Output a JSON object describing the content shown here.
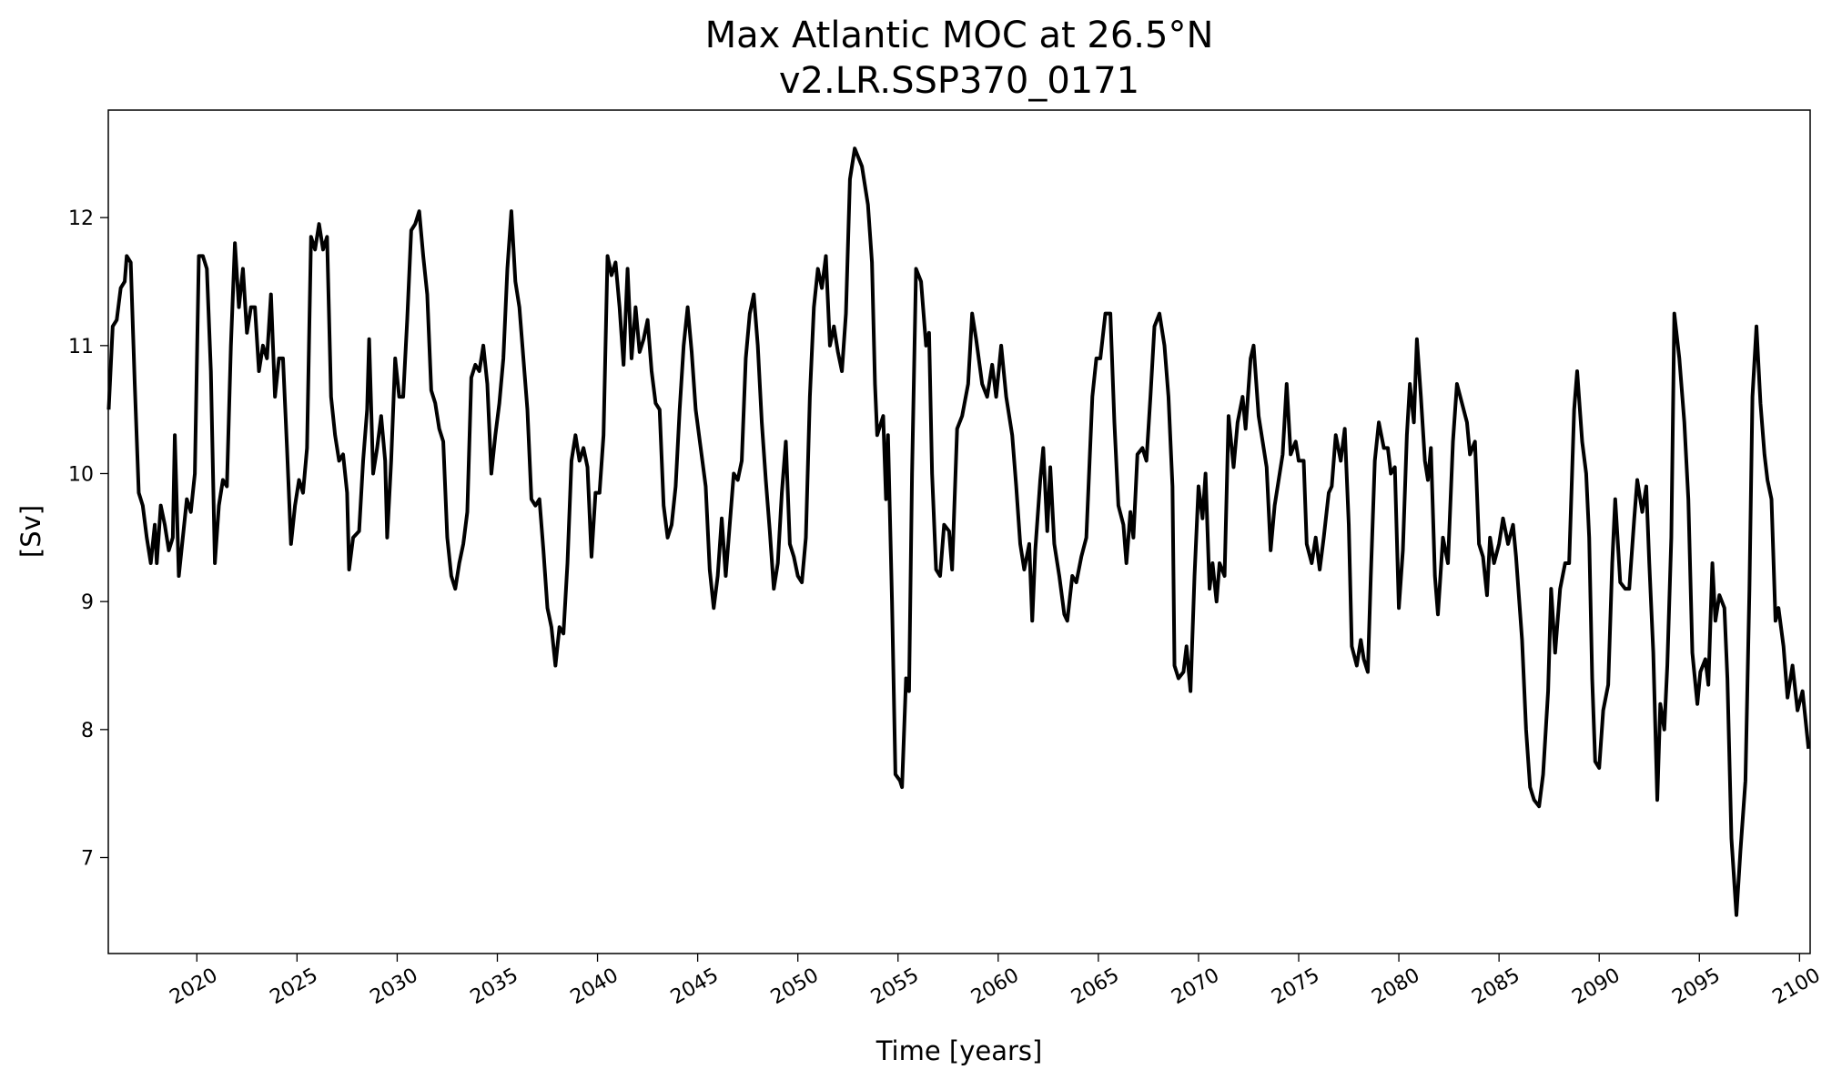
{
  "chart_data": {
    "type": "line",
    "title": "Max Atlantic MOC at 26.5°N",
    "subtitle": "v2.LR.SSP370_0171",
    "xlabel": "Time [years]",
    "ylabel": "[Sv]",
    "xlim": [
      2015.58,
      2100.53
    ],
    "ylim": [
      6.25,
      12.84
    ],
    "xticks": [
      2020,
      2025,
      2030,
      2035,
      2040,
      2045,
      2050,
      2055,
      2060,
      2065,
      2070,
      2075,
      2080,
      2085,
      2090,
      2095,
      2100
    ],
    "yticks": [
      7,
      8,
      9,
      10,
      11,
      12
    ],
    "grid": false,
    "x": [
      2015.6,
      2015.8,
      2016.0,
      2016.2,
      2016.4,
      2016.5,
      2016.7,
      2016.9,
      2017.1,
      2017.3,
      2017.5,
      2017.7,
      2017.9,
      2018.0,
      2018.2,
      2018.4,
      2018.6,
      2018.8,
      2018.9,
      2019.1,
      2019.3,
      2019.5,
      2019.7,
      2019.9,
      2020.1,
      2020.3,
      2020.5,
      2020.7,
      2020.9,
      2021.1,
      2021.3,
      2021.5,
      2021.7,
      2021.9,
      2022.1,
      2022.3,
      2022.5,
      2022.7,
      2022.9,
      2023.1,
      2023.3,
      2023.5,
      2023.7,
      2023.9,
      2024.1,
      2024.3,
      2024.5,
      2024.7,
      2024.9,
      2025.1,
      2025.3,
      2025.5,
      2025.7,
      2025.9,
      2026.1,
      2026.3,
      2026.5,
      2026.7,
      2026.9,
      2027.1,
      2027.3,
      2027.5,
      2027.6,
      2027.8,
      2028.1,
      2028.3,
      2028.5,
      2028.6,
      2028.8,
      2029.0,
      2029.2,
      2029.4,
      2029.5,
      2029.7,
      2029.9,
      2030.1,
      2030.3,
      2030.5,
      2030.7,
      2030.9,
      2031.1,
      2031.3,
      2031.5,
      2031.7,
      2031.9,
      2032.1,
      2032.3,
      2032.5,
      2032.7,
      2032.9,
      2033.1,
      2033.3,
      2033.5,
      2033.7,
      2033.9,
      2034.1,
      2034.3,
      2034.5,
      2034.7,
      2034.9,
      2035.1,
      2035.3,
      2035.5,
      2035.7,
      2035.9,
      2036.1,
      2036.3,
      2036.5,
      2036.7,
      2036.9,
      2037.1,
      2037.3,
      2037.5,
      2037.7,
      2037.9,
      2038.1,
      2038.3,
      2038.5,
      2038.7,
      2038.9,
      2039.1,
      2039.3,
      2039.5,
      2039.7,
      2039.9,
      2040.1,
      2040.3,
      2040.5,
      2040.7,
      2040.9,
      2041.1,
      2041.3,
      2041.5,
      2041.7,
      2041.9,
      2042.1,
      2042.3,
      2042.5,
      2042.7,
      2042.9,
      2043.1,
      2043.3,
      2043.5,
      2043.7,
      2043.9,
      2044.1,
      2044.3,
      2044.5,
      2044.7,
      2044.9,
      2045.4,
      2045.6,
      2045.8,
      2046.0,
      2046.2,
      2046.4,
      2046.6,
      2046.8,
      2047.0,
      2047.2,
      2047.4,
      2047.6,
      2047.8,
      2048.0,
      2048.2,
      2048.4,
      2048.6,
      2048.8,
      2049.0,
      2049.2,
      2049.4,
      2049.6,
      2049.8,
      2050.0,
      2050.2,
      2050.4,
      2050.6,
      2050.8,
      2051.0,
      2051.2,
      2051.4,
      2051.6,
      2051.8,
      2052.0,
      2052.2,
      2052.4,
      2052.6,
      2052.84,
      2053.2,
      2053.5,
      2053.7,
      2053.85,
      2053.96,
      2054.26,
      2054.4,
      2054.5,
      2054.7,
      2054.87,
      2055.1,
      2055.2,
      2055.4,
      2055.55,
      2055.7,
      2055.9,
      2056.15,
      2056.4,
      2056.55,
      2056.7,
      2056.9,
      2057.1,
      2057.3,
      2057.55,
      2057.7,
      2057.95,
      2058.2,
      2058.5,
      2058.7,
      2058.9,
      2059.2,
      2059.45,
      2059.7,
      2059.9,
      2060.15,
      2060.4,
      2060.7,
      2060.9,
      2061.1,
      2061.3,
      2061.55,
      2061.7,
      2061.85,
      2062.1,
      2062.25,
      2062.45,
      2062.6,
      2062.8,
      2063.05,
      2063.3,
      2063.45,
      2063.7,
      2063.9,
      2064.15,
      2064.4,
      2064.7,
      2064.9,
      2065.1,
      2065.35,
      2065.6,
      2065.8,
      2066.0,
      2066.25,
      2066.4,
      2066.6,
      2066.75,
      2066.95,
      2067.2,
      2067.4,
      2067.6,
      2067.8,
      2068.05,
      2068.3,
      2068.5,
      2068.7,
      2068.8,
      2069.0,
      2069.25,
      2069.4,
      2069.6,
      2069.8,
      2070.0,
      2070.2,
      2070.35,
      2070.55,
      2070.7,
      2070.9,
      2071.05,
      2071.3,
      2071.5,
      2071.75,
      2071.95,
      2072.2,
      2072.35,
      2072.6,
      2072.75,
      2073.0,
      2073.2,
      2073.4,
      2073.6,
      2073.8,
      2074.0,
      2074.2,
      2074.4,
      2074.6,
      2074.85,
      2075.0,
      2075.25,
      2075.4,
      2075.65,
      2075.85,
      2076.05,
      2076.25,
      2076.5,
      2076.65,
      2076.85,
      2077.1,
      2077.3,
      2077.5,
      2077.65,
      2077.9,
      2078.1,
      2078.25,
      2078.45,
      2078.6,
      2078.8,
      2079.0,
      2079.25,
      2079.45,
      2079.6,
      2079.8,
      2080.0,
      2080.2,
      2080.4,
      2080.55,
      2080.75,
      2080.9,
      2081.1,
      2081.3,
      2081.45,
      2081.6,
      2081.8,
      2081.95,
      2082.2,
      2082.45,
      2082.7,
      2082.9,
      2083.15,
      2083.4,
      2083.55,
      2083.8,
      2084.0,
      2084.2,
      2084.4,
      2084.55,
      2084.75,
      2085.0,
      2085.2,
      2085.45,
      2085.7,
      2085.85,
      2086.15,
      2086.35,
      2086.55,
      2086.75,
      2087.0,
      2087.2,
      2087.45,
      2087.6,
      2087.8,
      2088.05,
      2088.3,
      2088.5,
      2088.75,
      2088.9,
      2089.15,
      2089.35,
      2089.5,
      2089.65,
      2089.8,
      2090.0,
      2090.2,
      2090.45,
      2090.65,
      2090.8,
      2091.05,
      2091.3,
      2091.5,
      2091.75,
      2091.9,
      2092.15,
      2092.35,
      2092.5,
      2092.7,
      2092.9,
      2093.05,
      2093.25,
      2093.4,
      2093.6,
      2093.75,
      2094.0,
      2094.25,
      2094.45,
      2094.65,
      2094.9,
      2095.05,
      2095.3,
      2095.45,
      2095.65,
      2095.8,
      2096.0,
      2096.25,
      2096.4,
      2096.6,
      2096.85,
      2097.05,
      2097.3,
      2097.5,
      2097.65,
      2097.85,
      2098.05,
      2098.25,
      2098.4,
      2098.6,
      2098.8,
      2098.95,
      2099.2,
      2099.4,
      2099.65,
      2099.9,
      2100.15,
      2100.45
    ],
    "series": [
      {
        "color": "#000000",
        "values": [
          10.5,
          11.15,
          11.2,
          11.45,
          11.5,
          11.7,
          11.65,
          10.7,
          9.85,
          9.75,
          9.5,
          9.3,
          9.6,
          9.3,
          9.75,
          9.6,
          9.4,
          9.5,
          10.3,
          9.2,
          9.5,
          9.8,
          9.7,
          10.0,
          11.7,
          11.7,
          11.6,
          10.8,
          9.3,
          9.75,
          9.95,
          9.9,
          11.0,
          11.8,
          11.3,
          11.6,
          11.1,
          11.3,
          11.3,
          10.8,
          11.0,
          10.9,
          11.4,
          10.6,
          10.9,
          10.9,
          10.2,
          9.45,
          9.75,
          9.95,
          9.85,
          10.2,
          11.85,
          11.75,
          11.95,
          11.75,
          11.85,
          10.6,
          10.3,
          10.1,
          10.15,
          9.85,
          9.25,
          9.5,
          9.55,
          10.1,
          10.5,
          11.05,
          10.0,
          10.2,
          10.45,
          10.1,
          9.5,
          10.1,
          10.9,
          10.6,
          10.6,
          11.2,
          11.9,
          11.95,
          12.05,
          11.7,
          11.4,
          10.65,
          10.55,
          10.35,
          10.25,
          9.5,
          9.2,
          9.1,
          9.3,
          9.45,
          9.7,
          10.75,
          10.85,
          10.8,
          11.0,
          10.7,
          10.0,
          10.3,
          10.55,
          10.9,
          11.6,
          12.05,
          11.5,
          11.3,
          10.9,
          10.5,
          9.8,
          9.75,
          9.8,
          9.4,
          8.95,
          8.8,
          8.5,
          8.8,
          8.75,
          9.3,
          10.1,
          10.3,
          10.1,
          10.2,
          10.05,
          9.35,
          9.85,
          9.85,
          10.3,
          11.7,
          11.55,
          11.65,
          11.3,
          10.85,
          11.6,
          10.9,
          11.3,
          10.95,
          11.05,
          11.2,
          10.8,
          10.55,
          10.5,
          9.75,
          9.5,
          9.6,
          9.9,
          10.5,
          11.0,
          11.3,
          10.95,
          10.5,
          9.9,
          9.25,
          8.95,
          9.2,
          9.65,
          9.2,
          9.6,
          10.0,
          9.95,
          10.1,
          10.9,
          11.25,
          11.4,
          11.0,
          10.4,
          9.95,
          9.55,
          9.1,
          9.3,
          9.85,
          10.25,
          9.45,
          9.35,
          9.2,
          9.15,
          9.5,
          10.6,
          11.3,
          11.6,
          11.45,
          11.7,
          11.0,
          11.15,
          10.95,
          10.8,
          11.25,
          12.3,
          12.54,
          12.4,
          12.1,
          11.65,
          10.7,
          10.3,
          10.45,
          9.8,
          10.3,
          9.0,
          7.65,
          7.6,
          7.55,
          8.4,
          8.3,
          10.0,
          11.6,
          11.5,
          11.0,
          11.1,
          10.0,
          9.25,
          9.2,
          9.6,
          9.55,
          9.25,
          10.35,
          10.45,
          10.7,
          11.25,
          11.05,
          10.7,
          10.6,
          10.85,
          10.6,
          11.0,
          10.6,
          10.3,
          9.9,
          9.45,
          9.25,
          9.45,
          8.85,
          9.4,
          9.95,
          10.2,
          9.55,
          10.05,
          9.45,
          9.2,
          8.9,
          8.85,
          9.2,
          9.15,
          9.35,
          9.5,
          10.6,
          10.9,
          10.9,
          11.25,
          11.25,
          10.4,
          9.75,
          9.6,
          9.3,
          9.7,
          9.5,
          10.15,
          10.2,
          10.1,
          10.6,
          11.15,
          11.25,
          11.0,
          10.6,
          9.9,
          8.5,
          8.4,
          8.45,
          8.65,
          8.3,
          9.2,
          9.9,
          9.65,
          10.0,
          9.1,
          9.3,
          9.0,
          9.3,
          9.2,
          10.45,
          10.05,
          10.4,
          10.6,
          10.35,
          10.9,
          11.0,
          10.45,
          10.25,
          10.05,
          9.4,
          9.75,
          9.95,
          10.15,
          10.7,
          10.15,
          10.25,
          10.1,
          10.1,
          9.45,
          9.3,
          9.5,
          9.25,
          9.5,
          9.85,
          9.9,
          10.3,
          10.1,
          10.35,
          9.6,
          8.65,
          8.5,
          8.7,
          8.55,
          8.45,
          9.2,
          10.1,
          10.4,
          10.2,
          10.2,
          10.0,
          10.05,
          8.95,
          9.4,
          10.3,
          10.7,
          10.4,
          11.05,
          10.6,
          10.1,
          9.95,
          10.2,
          9.2,
          8.9,
          9.5,
          9.3,
          10.25,
          10.7,
          10.55,
          10.4,
          10.15,
          10.25,
          9.45,
          9.35,
          9.05,
          9.5,
          9.3,
          9.45,
          9.65,
          9.45,
          9.6,
          9.35,
          8.7,
          8.0,
          7.55,
          7.45,
          7.4,
          7.65,
          8.3,
          9.1,
          8.6,
          9.1,
          9.3,
          9.3,
          10.5,
          10.8,
          10.25,
          10.0,
          9.5,
          8.4,
          7.75,
          7.7,
          8.15,
          8.35,
          9.3,
          9.8,
          9.15,
          9.1,
          9.1,
          9.65,
          9.95,
          9.7,
          9.9,
          9.3,
          8.6,
          7.45,
          8.2,
          8.0,
          8.5,
          9.5,
          11.25,
          10.9,
          10.4,
          9.8,
          8.6,
          8.2,
          8.45,
          8.55,
          8.35,
          9.3,
          8.85,
          9.05,
          8.95,
          8.4,
          7.15,
          6.55,
          7.05,
          7.6,
          9.1,
          10.6,
          11.15,
          10.55,
          10.15,
          9.95,
          9.8,
          8.85,
          8.95,
          8.65,
          8.25,
          8.5,
          8.15,
          8.3,
          7.85
        ]
      }
    ]
  }
}
